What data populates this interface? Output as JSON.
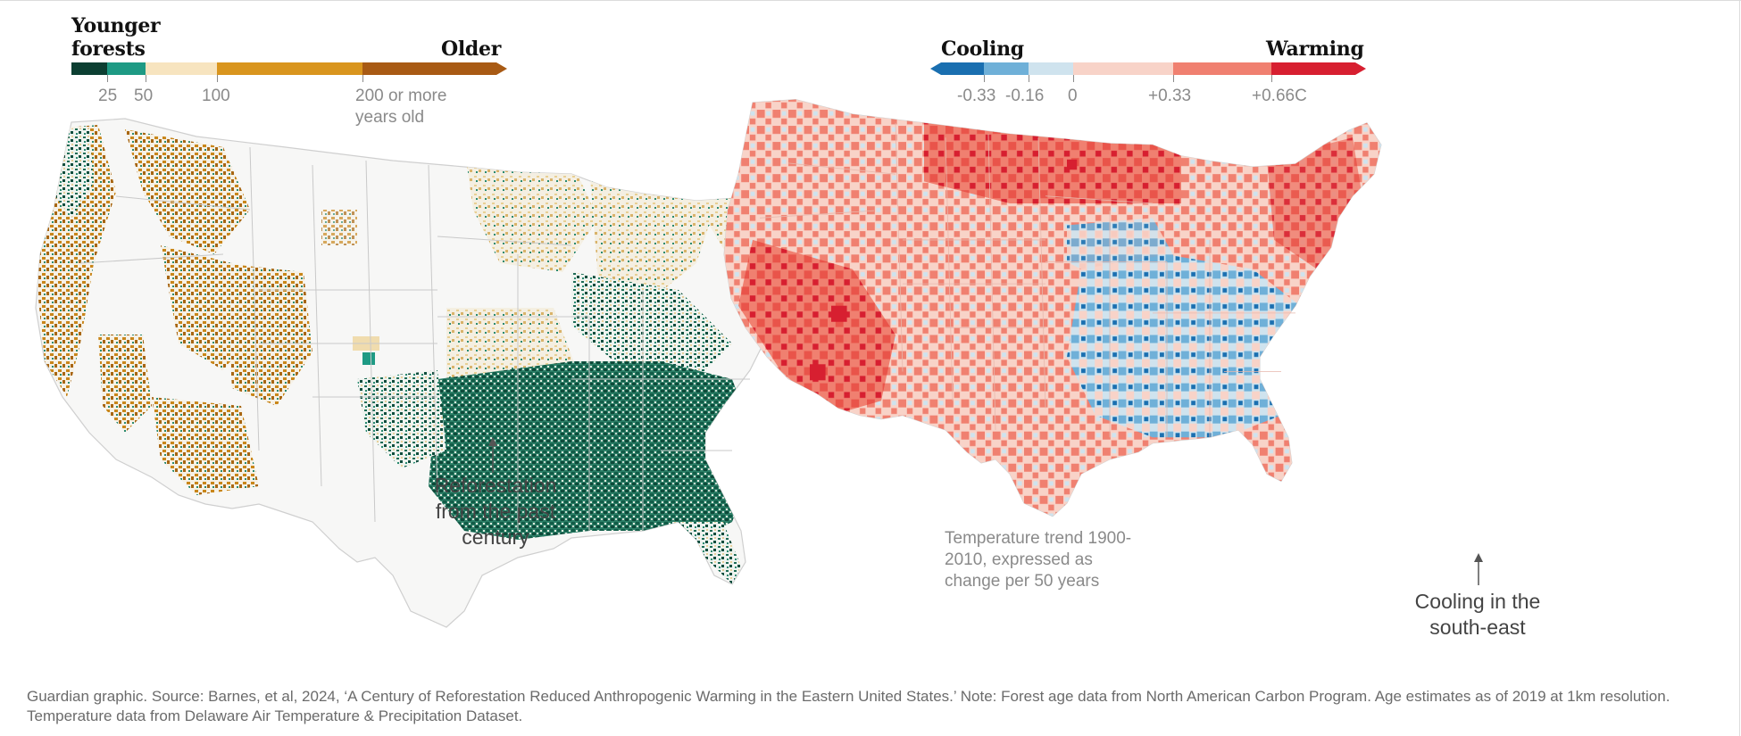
{
  "forest_legend": {
    "title_left": "Younger\nforests",
    "title_right": "Older",
    "ticks": [
      "25",
      "50",
      "100",
      "200 or more years old"
    ],
    "colors": [
      "#0c3f32",
      "#1e9a84",
      "#f7e4bf",
      "#d9951e",
      "#a85a14"
    ]
  },
  "temp_legend": {
    "title_left": "Cooling",
    "title_right": "Warming",
    "ticks": [
      "-0.33",
      "-0.16",
      "0",
      "+0.33",
      "+0.66C"
    ],
    "colors": [
      "#1a6fb0",
      "#6fb0d8",
      "#cfe3ee",
      "#f8d3c8",
      "#f08070",
      "#d71f30"
    ]
  },
  "left_map": {
    "callout": "Reforestation from the past century"
  },
  "right_map": {
    "note": "Temperature trend 1900-2010, expressed as change per 50 years",
    "callout": "Cooling in the south-east"
  },
  "footer": "Guardian graphic. Source: Barnes, et al, 2024, ‘A Century of Reforestation Reduced Anthropogenic Warming in the Eastern United States.’ Note: Forest age data from North American Carbon Program. Age estimates as of 2019 at 1km resolution. Temperature data from Delaware Air Temperature & Precipitation Dataset."
}
